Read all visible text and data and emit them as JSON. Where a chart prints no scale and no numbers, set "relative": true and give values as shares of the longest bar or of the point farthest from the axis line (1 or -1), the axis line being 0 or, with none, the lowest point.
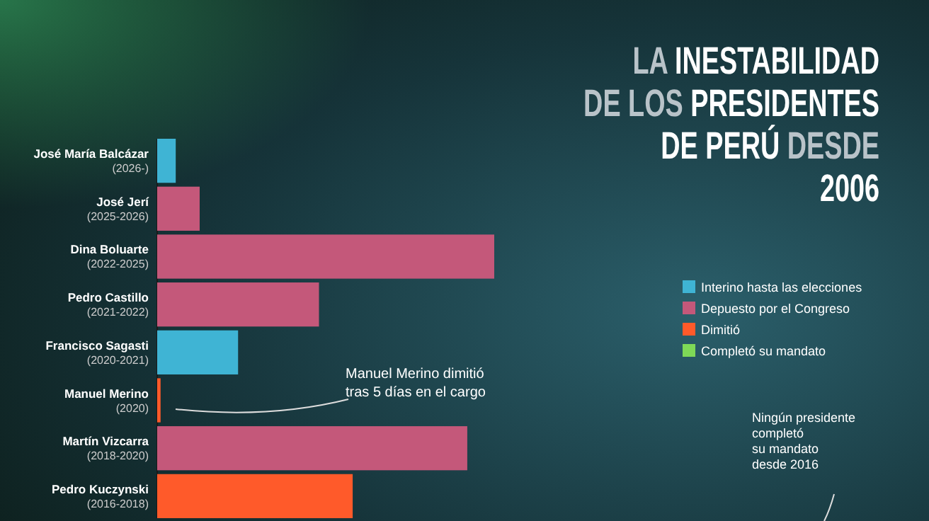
{
  "chart_data": {
    "type": "bar",
    "orientation": "horizontal",
    "relative": true,
    "title": "LA INESTABILIDAD\nDE LOS PRESIDENTES\nDE PERÚ DESDE\n2006",
    "categories": [
      "José María Balcázar\n(2026-)",
      "José Jerí\n(2025-2026)",
      "Dina Boluarte\n(2022-2025)",
      "Pedro Castillo\n(2021-2022)",
      "Francisco Sagasti\n(2020-2021)",
      "Manuel Merino\n(2020)",
      "Martín Vizcarra\n(2018-2020)",
      "Pedro Kuczynski\n(2016-2018)"
    ],
    "series": [
      {
        "name": "Interino hasta las elecciones",
        "color": "#3fb4d4",
        "values": [
          0.055,
          null,
          null,
          null,
          0.24,
          null,
          null,
          null
        ]
      },
      {
        "name": "Depuesto por el Congreso",
        "color": "#c4587a",
        "values": [
          null,
          0.126,
          1,
          0.48,
          null,
          null,
          0.92,
          null
        ]
      },
      {
        "name": "Dimitió",
        "color": "#ff5a2a",
        "values": [
          null,
          null,
          null,
          null,
          null,
          0.01,
          null,
          0.58
        ]
      },
      {
        "name": "Completó su mandato",
        "color": "#7ed957",
        "values": [
          null,
          null,
          null,
          null,
          null,
          null,
          null,
          null
        ]
      }
    ],
    "legend": "right",
    "annotations": [
      "Manuel Merino dimitió\ntras 5 días en el cargo",
      "Ningún presidente\ncompletó\nsu mandato\ndesde 2016"
    ]
  }
}
